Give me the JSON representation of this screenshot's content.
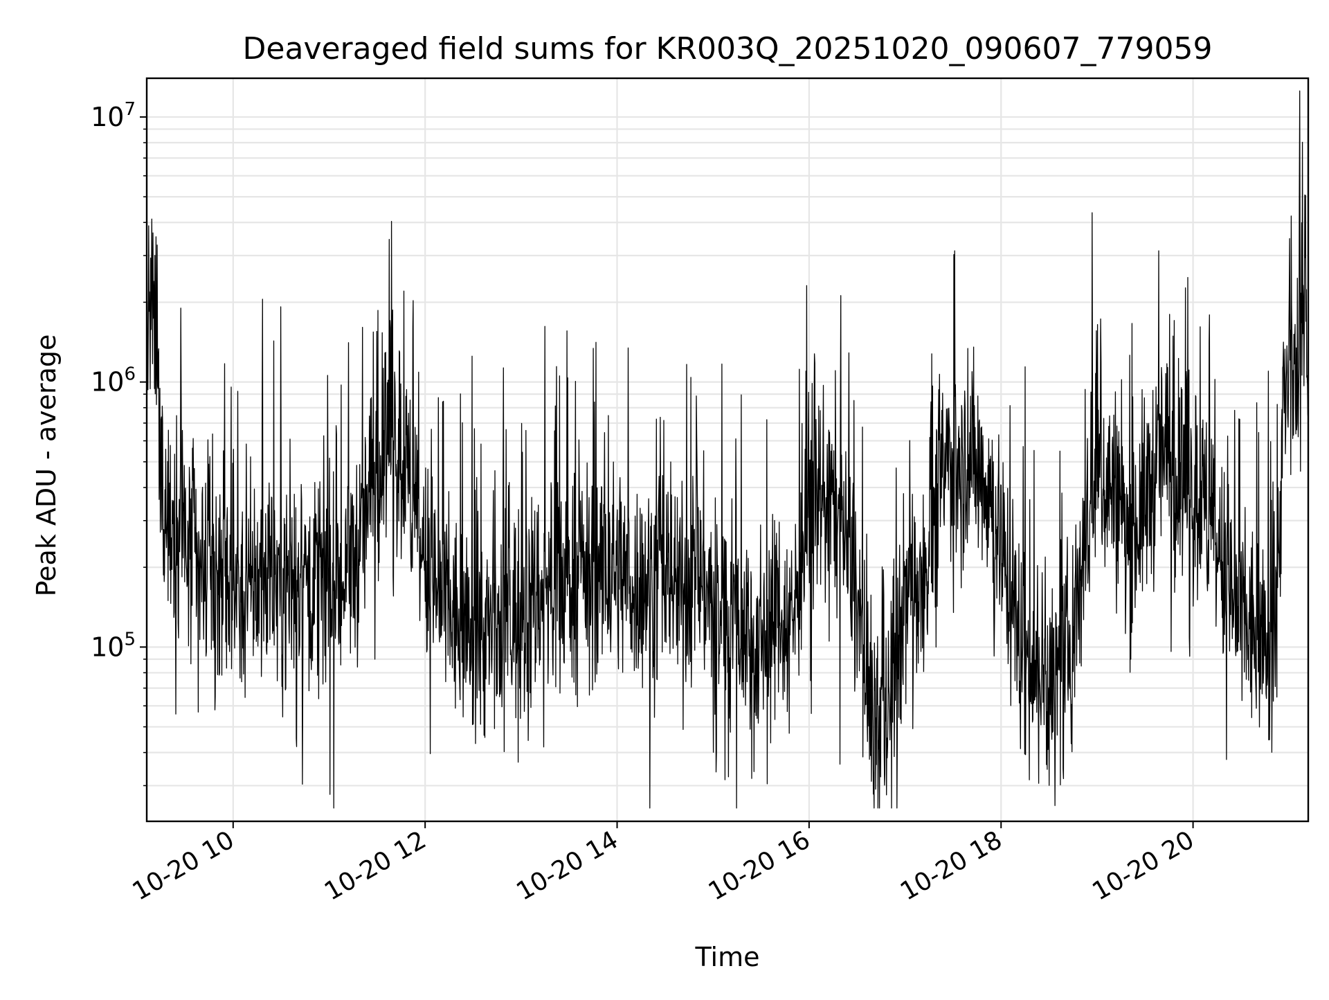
{
  "chart_data": {
    "type": "line",
    "title": "Deaveraged field sums for KR003Q_20251020_090607_779059",
    "xlabel": "Time",
    "ylabel": "Peak ADU - average",
    "xscale": "time",
    "yscale": "log",
    "xlim": [
      "2025-10-20 09:06",
      "2025-10-20 21:12"
    ],
    "ylim": [
      22000,
      14000000
    ],
    "grid": true,
    "legend": "none",
    "line_color": "#000000",
    "xticks": [
      {
        "value": "2025-10-20 10:00",
        "label": "10-20 10"
      },
      {
        "value": "2025-10-20 12:00",
        "label": "10-20 12"
      },
      {
        "value": "2025-10-20 14:00",
        "label": "10-20 14"
      },
      {
        "value": "2025-10-20 16:00",
        "label": "10-20 16"
      },
      {
        "value": "2025-10-20 18:00",
        "label": "10-20 18"
      },
      {
        "value": "2025-10-20 20:00",
        "label": "10-20 20"
      }
    ],
    "yticks": [
      {
        "value": 100000,
        "base": "10",
        "exp": "5"
      },
      {
        "value": 1000000,
        "base": "10",
        "exp": "6"
      },
      {
        "value": 10000000,
        "base": "10",
        "exp": "7"
      }
    ],
    "series": [
      {
        "x": [
          "09:06",
          "09:09",
          "09:12",
          "09:15",
          "09:20",
          "09:30",
          "09:40",
          "09:50",
          "10:00",
          "10:10",
          "10:20",
          "10:30",
          "10:45",
          "11:00",
          "11:10",
          "11:20",
          "11:30",
          "11:40",
          "11:50",
          "12:00",
          "12:10",
          "12:20",
          "12:40",
          "13:00",
          "13:20",
          "13:40",
          "14:00",
          "14:10",
          "14:20",
          "14:30",
          "14:40",
          "14:50",
          "15:00",
          "15:10",
          "15:20",
          "15:30",
          "15:40",
          "15:50",
          "16:00",
          "16:10",
          "16:20",
          "16:30",
          "16:35",
          "16:40",
          "16:50",
          "17:00",
          "17:10",
          "17:20",
          "17:30",
          "17:40",
          "17:50",
          "18:00",
          "18:10",
          "18:20",
          "18:30",
          "18:40",
          "18:50",
          "19:00",
          "19:10",
          "19:20",
          "19:30",
          "19:40",
          "19:50",
          "20:00",
          "20:10",
          "20:20",
          "20:30",
          "20:40",
          "20:48",
          "20:52",
          "20:56",
          "21:00",
          "21:05",
          "21:08",
          "21:10",
          "21:12"
        ],
        "y": [
          1600000,
          1700000,
          1500000,
          450000,
          300000,
          250000,
          200000,
          180000,
          170000,
          160000,
          200000,
          170000,
          190000,
          160000,
          180000,
          250000,
          500000,
          700000,
          400000,
          200000,
          150000,
          120000,
          110000,
          140000,
          180000,
          190000,
          200000,
          170000,
          180000,
          190000,
          160000,
          200000,
          150000,
          130000,
          120000,
          110000,
          140000,
          130000,
          350000,
          400000,
          300000,
          150000,
          80000,
          50000,
          60000,
          150000,
          200000,
          400000,
          550000,
          500000,
          450000,
          250000,
          120000,
          80000,
          70000,
          80000,
          200000,
          450000,
          400000,
          250000,
          350000,
          550000,
          450000,
          400000,
          300000,
          180000,
          120000,
          110000,
          100000,
          120000,
          700000,
          1000000,
          1200000,
          1500000,
          1600000,
          1300000
        ]
      }
    ]
  }
}
